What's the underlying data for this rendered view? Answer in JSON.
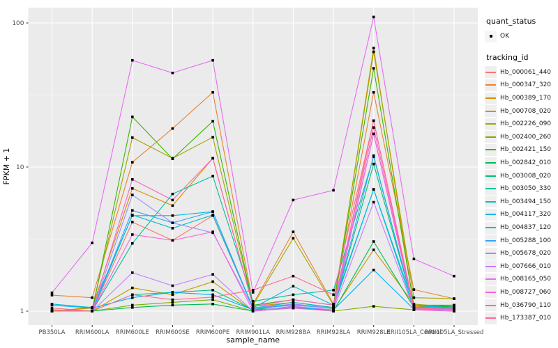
{
  "chart_data": {
    "type": "line",
    "title": "",
    "xlabel": "sample_name",
    "ylabel": "FPKM + 1",
    "y_scale": "log10",
    "ylim": [
      0.8,
      127
    ],
    "y_ticks": [
      1,
      10,
      100
    ],
    "y_tick_labels": [
      "1",
      "10",
      "100"
    ],
    "y_minor_gridlines": [
      3.162,
      31.62
    ],
    "grid": "on",
    "legend_position": "right",
    "point_color": "#000000",
    "panel_bg": "#ebebeb",
    "grid_color": "#ffffff",
    "categories": [
      "PB350LA",
      "RRIM600LA",
      "RRIM600LE",
      "RRIM600SE",
      "RRIM600PE",
      "RRIM901LA",
      "RRIM928BA",
      "RRIM928LA",
      "RRIM928LE",
      "RRII105LA_Control",
      "RRII105LA_Stressed"
    ],
    "series": [
      {
        "name": "Hb_000061_440",
        "color": "#F8766D",
        "values": [
          1.05,
          1.0,
          4.15,
          3.1,
          4.6,
          1.05,
          1.1,
          1.05,
          21.0,
          1.05,
          1.02
        ]
      },
      {
        "name": "Hb_000347_320",
        "color": "#EA8331",
        "values": [
          1.29,
          1.24,
          10.8,
          18.5,
          33.0,
          1.12,
          3.55,
          1.12,
          33.0,
          1.41,
          1.22
        ]
      },
      {
        "name": "Hb_000389_170",
        "color": "#D89000",
        "values": [
          1.0,
          1.06,
          7.1,
          5.4,
          11.5,
          1.08,
          1.15,
          1.06,
          67.0,
          1.08,
          1.05
        ]
      },
      {
        "name": "Hb_000708_020",
        "color": "#C09B00",
        "values": [
          1.0,
          1.0,
          1.45,
          1.3,
          1.6,
          1.0,
          1.06,
          1.02,
          2.66,
          1.12,
          1.06
        ]
      },
      {
        "name": "Hb_002226_090",
        "color": "#A3A500",
        "values": [
          1.0,
          1.05,
          16.0,
          11.5,
          16.1,
          1.1,
          3.2,
          1.1,
          63.0,
          1.24,
          1.22
        ]
      },
      {
        "name": "Hb_002400_260",
        "color": "#7CAE00",
        "values": [
          1.0,
          1.0,
          1.1,
          1.15,
          1.2,
          1.0,
          1.05,
          1.0,
          1.08,
          1.02,
          1.0
        ]
      },
      {
        "name": "Hb_002421_150",
        "color": "#39B600",
        "values": [
          1.02,
          1.0,
          22.3,
          11.4,
          20.8,
          1.1,
          1.2,
          1.1,
          48.5,
          1.1,
          1.1
        ]
      },
      {
        "name": "Hb_002842_010",
        "color": "#00BB4E",
        "values": [
          1.0,
          1.0,
          1.06,
          1.1,
          1.12,
          1.0,
          1.08,
          1.0,
          3.04,
          1.06,
          1.08
        ]
      },
      {
        "name": "Hb_003008_020",
        "color": "#00C079",
        "values": [
          1.0,
          1.0,
          1.3,
          1.35,
          1.4,
          1.02,
          1.12,
          1.04,
          10.5,
          1.06,
          1.1
        ]
      },
      {
        "name": "Hb_003050_330",
        "color": "#00C19C",
        "values": [
          1.0,
          1.0,
          2.95,
          6.5,
          8.65,
          1.17,
          1.3,
          1.4,
          11.8,
          1.05,
          1.05
        ]
      },
      {
        "name": "Hb_003494_150",
        "color": "#00BFC4",
        "values": [
          1.0,
          1.0,
          4.65,
          3.76,
          4.65,
          1.05,
          1.15,
          1.06,
          7.0,
          1.04,
          1.03
        ]
      },
      {
        "name": "Hb_004117_320",
        "color": "#00BAE0",
        "values": [
          1.12,
          1.06,
          4.6,
          4.6,
          4.9,
          1.05,
          1.49,
          1.1,
          7.0,
          1.1,
          1.05
        ]
      },
      {
        "name": "Hb_004837_120",
        "color": "#00B0F6",
        "values": [
          1.1,
          1.05,
          1.24,
          1.35,
          1.3,
          1.02,
          1.06,
          1.02,
          1.93,
          1.03,
          1.02
        ]
      },
      {
        "name": "Hb_005288_100",
        "color": "#35A2FF",
        "values": [
          1.0,
          1.0,
          5.0,
          4.1,
          4.9,
          1.04,
          1.1,
          1.05,
          12.0,
          1.05,
          1.03
        ]
      },
      {
        "name": "Hb_005678_020",
        "color": "#9590FF",
        "values": [
          1.0,
          1.0,
          6.4,
          4.1,
          3.5,
          1.05,
          1.12,
          1.05,
          17.0,
          1.04,
          1.02
        ]
      },
      {
        "name": "Hb_007666_010",
        "color": "#C77CFF",
        "values": [
          1.0,
          1.0,
          1.85,
          1.5,
          1.8,
          1.0,
          1.08,
          1.02,
          5.7,
          1.03,
          1.0
        ]
      },
      {
        "name": "Hb_008165_050",
        "color": "#E76BF3",
        "values": [
          1.34,
          2.97,
          55.0,
          45.0,
          55.0,
          1.35,
          5.9,
          6.9,
          110.0,
          2.3,
          1.75
        ]
      },
      {
        "name": "Hb_008727_060",
        "color": "#FA62DB",
        "values": [
          1.0,
          1.0,
          3.4,
          3.1,
          3.55,
          1.0,
          1.05,
          1.0,
          17.0,
          1.02,
          1.0
        ]
      },
      {
        "name": "Hb_036790_110",
        "color": "#FF62BC",
        "values": [
          1.0,
          1.0,
          8.2,
          5.9,
          11.5,
          1.08,
          1.2,
          1.1,
          18.8,
          1.06,
          1.04
        ]
      },
      {
        "name": "Hb_173387_010",
        "color": "#FF6A98",
        "values": [
          1.02,
          1.0,
          1.3,
          1.2,
          1.25,
          1.4,
          1.75,
          1.3,
          21.0,
          1.05,
          1.02
        ]
      }
    ]
  },
  "legend": {
    "quant_status": {
      "title": "quant_status",
      "items": [
        {
          "label": "OK",
          "symbol": "black-point"
        }
      ]
    },
    "tracking_id": {
      "title": "tracking_id"
    }
  }
}
